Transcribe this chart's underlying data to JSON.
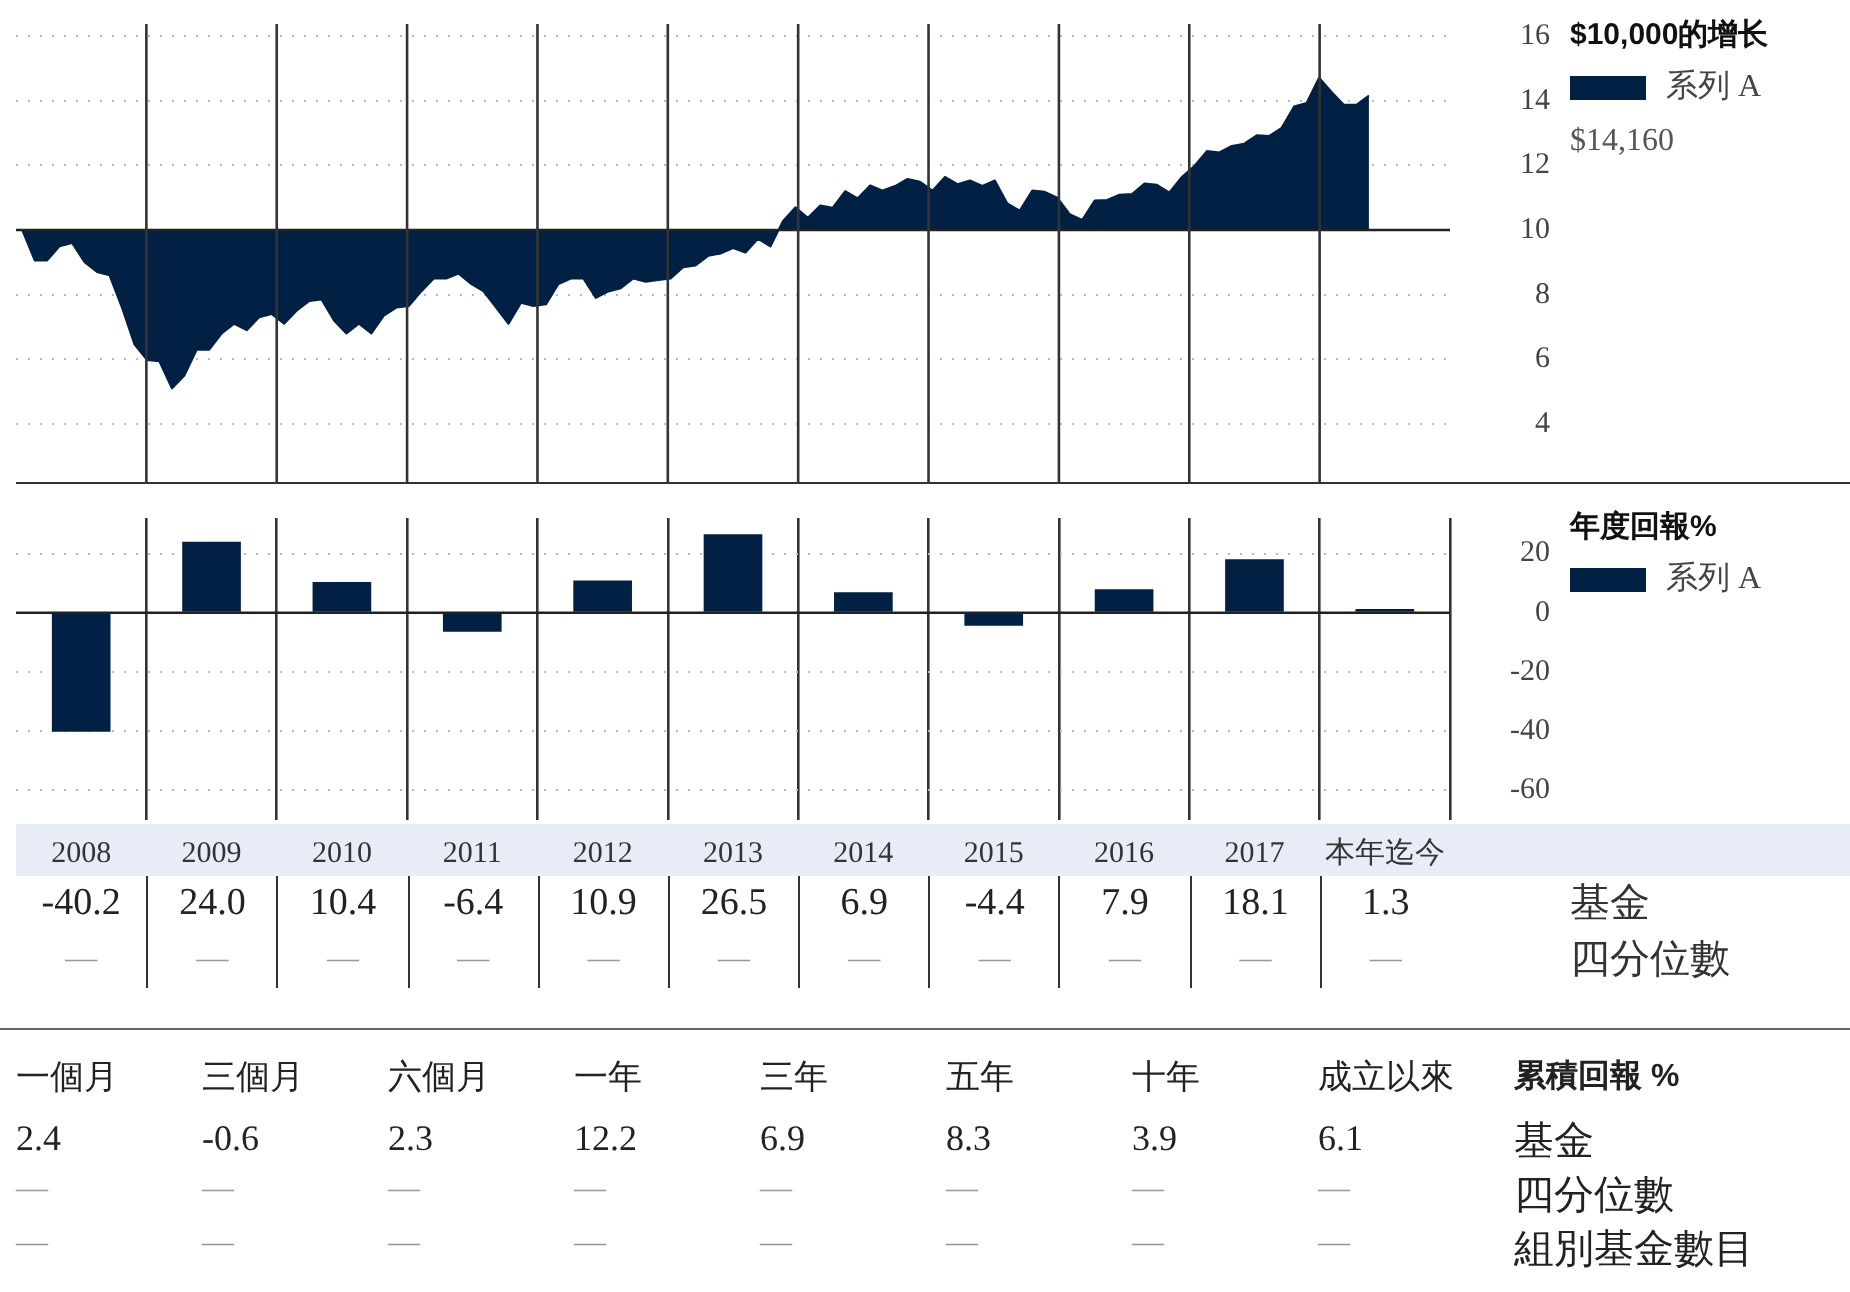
{
  "chart_data": [
    {
      "type": "area",
      "legend_title": "$10,000的增长",
      "legend": "right",
      "grid": true,
      "tick_labels": "y",
      "categories": [
        null,
        null,
        null,
        null,
        null,
        null,
        null,
        null,
        null,
        null,
        null,
        null,
        null,
        null,
        null,
        null,
        null,
        null,
        null,
        null,
        null,
        null,
        null,
        null,
        null,
        null,
        null,
        null,
        null,
        null,
        null,
        null,
        null,
        null,
        null,
        null,
        null,
        null,
        null,
        null,
        null,
        null,
        null,
        null,
        null,
        null,
        null,
        null,
        null,
        null,
        null,
        null,
        null,
        null,
        null,
        null,
        null,
        null,
        null,
        null,
        null,
        null,
        null,
        null,
        null,
        null,
        null,
        null,
        null,
        null,
        null,
        null,
        null,
        null,
        null,
        null,
        null,
        null,
        null,
        null,
        null,
        null,
        null,
        null,
        null,
        null,
        null,
        null,
        null,
        null,
        null,
        null,
        null,
        null,
        null,
        null,
        null,
        null,
        null,
        null,
        null,
        null,
        null,
        null,
        null,
        null,
        null,
        null,
        null,
        null,
        null,
        null,
        null,
        null,
        null
      ],
      "ylim": [
        4,
        16
      ],
      "yticks": [
        4,
        6,
        8,
        10,
        12,
        14,
        16
      ],
      "ref_lines": [
        {
          "axis": "y",
          "value": 10,
          "color": "#222222"
        }
      ],
      "annotations": [
        "$14,160"
      ],
      "series": [
        {
          "name": "系列 A",
          "color": "#012043",
          "values": [
            10.0,
            9.06,
            9.06,
            9.5,
            9.6,
            9.0,
            8.7,
            8.6,
            7.6,
            6.46,
            5.98,
            5.94,
            5.1,
            5.5,
            6.3,
            6.3,
            6.8,
            7.1,
            6.9,
            7.3,
            7.4,
            7.1,
            7.5,
            7.8,
            7.85,
            7.2,
            6.8,
            7.1,
            6.8,
            7.35,
            7.6,
            7.65,
            8.1,
            8.5,
            8.5,
            8.65,
            8.33,
            8.1,
            7.6,
            7.1,
            7.75,
            7.65,
            7.7,
            8.33,
            8.5,
            8.5,
            7.9,
            8.1,
            8.2,
            8.5,
            8.4,
            8.45,
            8.5,
            8.85,
            8.9,
            9.2,
            9.27,
            9.44,
            9.3,
            9.73,
            9.49,
            10.27,
            10.7,
            10.38,
            10.76,
            10.69,
            11.2,
            10.98,
            11.38,
            11.22,
            11.36,
            11.58,
            11.49,
            11.22,
            11.64,
            11.42,
            11.53,
            11.36,
            11.53,
            10.82,
            10.6,
            11.22,
            11.18,
            11.0,
            10.49,
            10.31,
            10.91,
            10.93,
            11.09,
            11.11,
            11.44,
            11.4,
            11.16,
            11.64,
            11.98,
            12.44,
            12.4,
            12.6,
            12.67,
            12.93,
            12.91,
            13.16,
            13.82,
            13.93,
            14.71,
            14.27,
            13.87,
            13.87,
            14.16,
            null,
            null,
            null,
            null,
            null,
            null
          ]
        }
      ]
    },
    {
      "type": "bar",
      "legend_title": "年度回報%",
      "legend": "right",
      "grid": true,
      "categories": [
        "2008",
        "2009",
        "2010",
        "2011",
        "2012",
        "2013",
        "2014",
        "2015",
        "2016",
        "2017",
        "本年迄今"
      ],
      "ylim": [
        -70,
        32
      ],
      "yticks": [
        -60,
        -40,
        -20,
        0,
        20
      ],
      "annotations": [
        "基金",
        "四分位數",
        "—",
        "—",
        "—",
        "—",
        "—",
        "—",
        "—",
        "—",
        "—",
        "—",
        "—"
      ],
      "series": [
        {
          "name": "系列 A",
          "color": "#012043",
          "values": [
            -40.2,
            24.0,
            10.4,
            -6.4,
            10.9,
            26.5,
            6.9,
            -4.4,
            7.9,
            18.1,
            1.3
          ],
          "value_labels": [
            "-40.2",
            "24.0",
            "10.4",
            "-6.4",
            "10.9",
            "26.5",
            "6.9",
            "-4.4",
            "7.9",
            "18.1",
            "1.3"
          ]
        }
      ]
    },
    {
      "type": "other",
      "title": "累積回報 %",
      "data_labels": true,
      "categories": [
        "一個月",
        "三個月",
        "六個月",
        "一年",
        "三年",
        "五年",
        "十年",
        "成立以來"
      ],
      "values": [
        2.4,
        -0.6,
        2.3,
        12.2,
        6.9,
        8.3,
        3.9,
        6.1
      ],
      "annotations": [
        "基金",
        "四分位數",
        "組別基金數目",
        "—",
        "—",
        "—",
        "—",
        "—",
        "—",
        "—",
        "—",
        "—",
        "—",
        "—",
        "—",
        "—",
        "—",
        "—",
        "—"
      ]
    }
  ]
}
